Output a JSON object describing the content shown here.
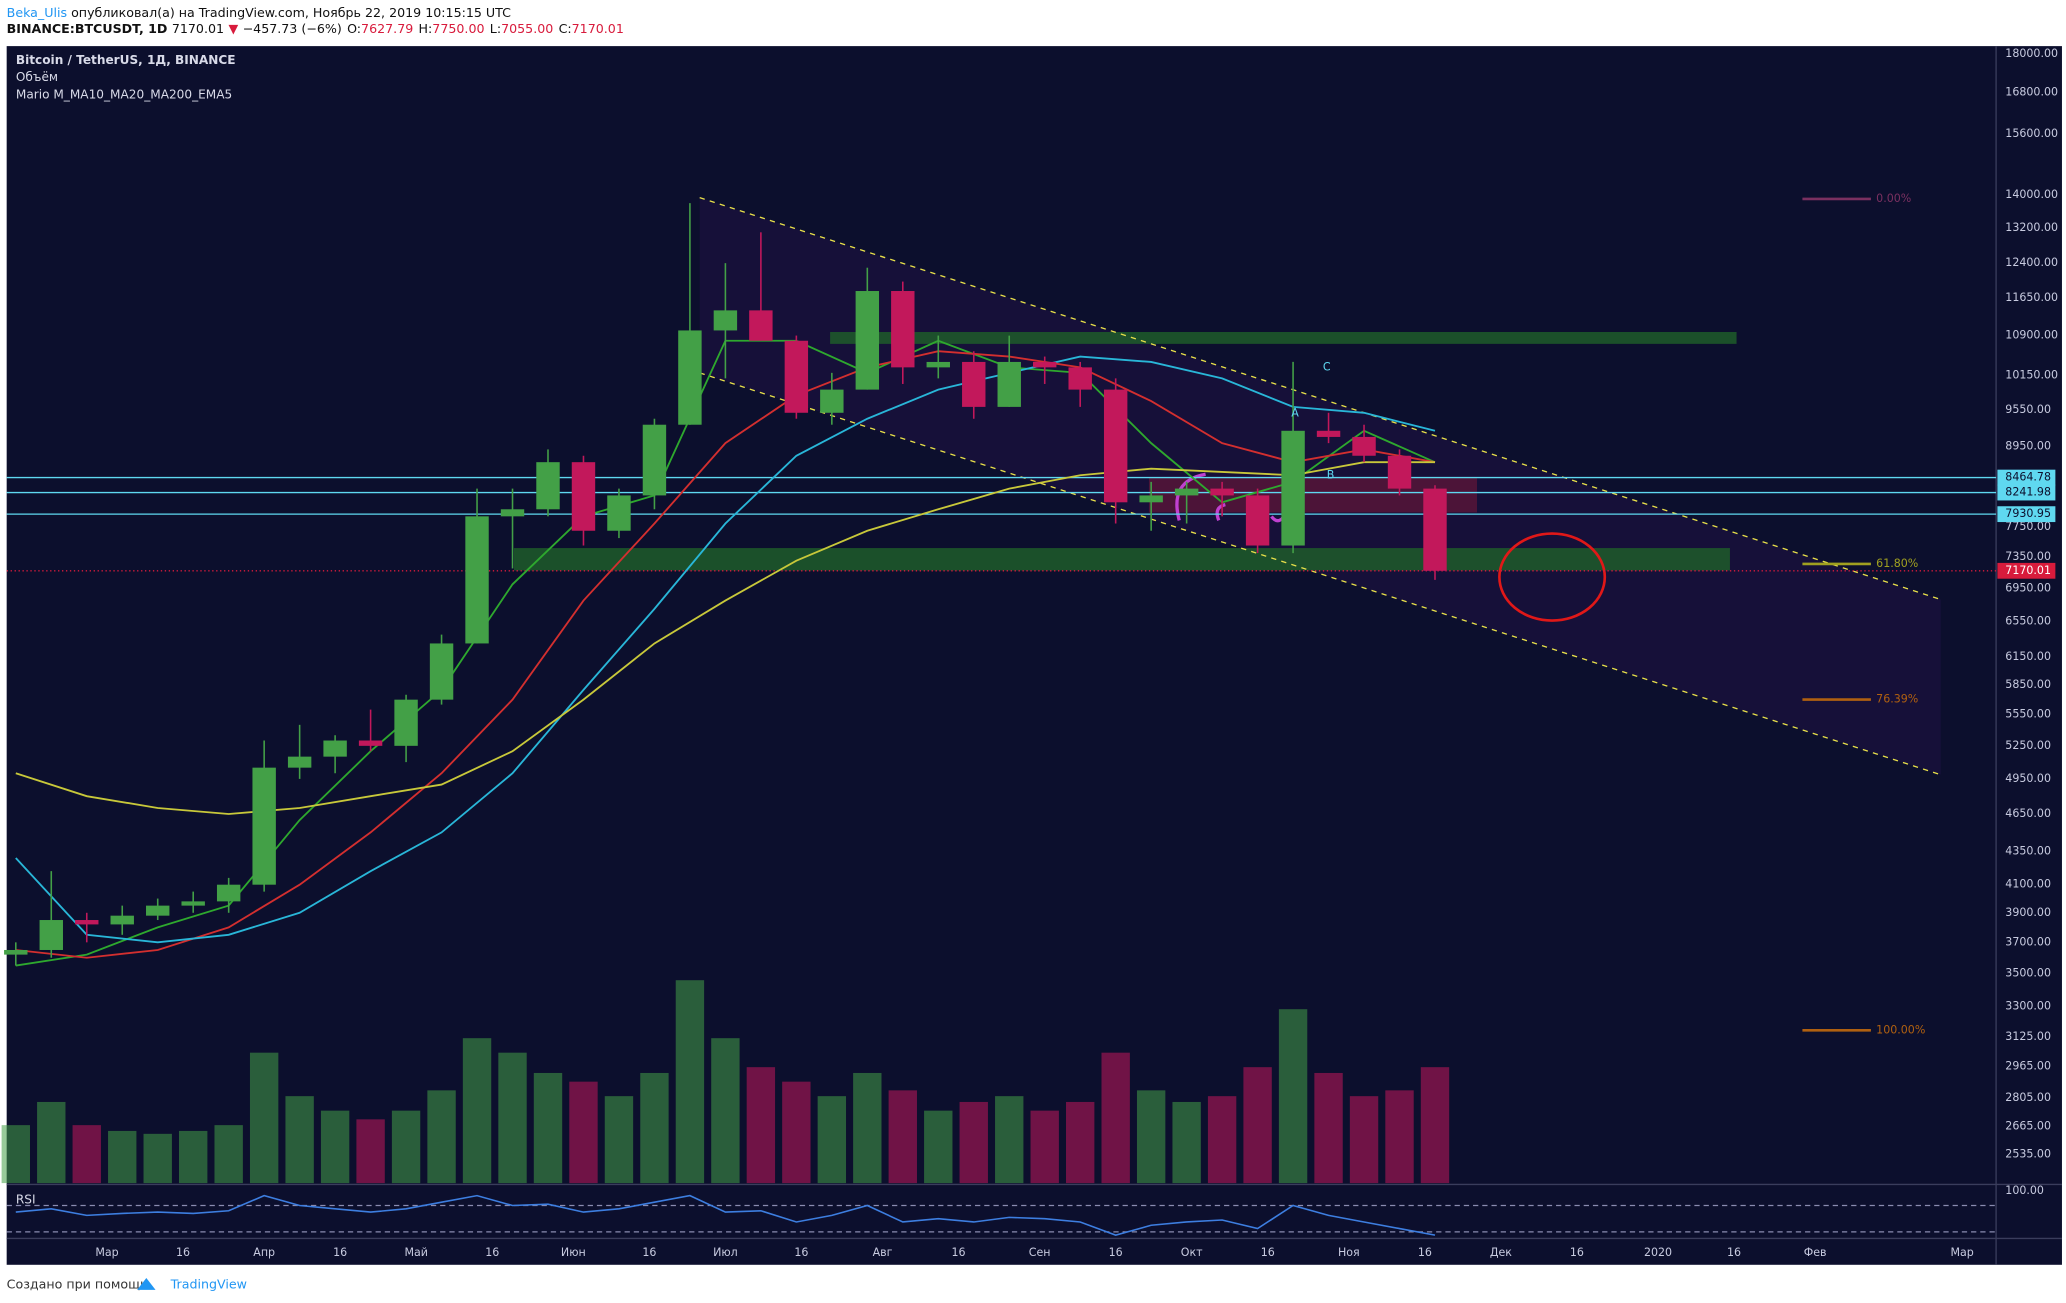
{
  "header": {
    "author": "Beka_Ulis",
    "published": "опубликовал(а) на TradingView.com, Ноябрь 22, 2019 10:15:15 UTC",
    "symbol": "BINANCE:BTCUSDT, 1D",
    "last": "7170.01",
    "arrow": "▼",
    "change": "−457.73 (−6%)",
    "ohlc": [
      {
        "key": "O:",
        "value": "7627.79"
      },
      {
        "key": "H:",
        "value": "7750.00"
      },
      {
        "key": "L:",
        "value": "7055.00"
      },
      {
        "key": "C:",
        "value": "7170.01"
      }
    ]
  },
  "legend": [
    "Bitcoin / TetherUS, 1Д, BINANCE",
    "Объём",
    "Mario M_MA10_MA20_MA200_EMA5"
  ],
  "annotations": {
    "a": "A",
    "b": "B",
    "c": "C",
    "fib": [
      "0.00%",
      "61.80%",
      "76.39%",
      "100.00%"
    ]
  },
  "footer": {
    "created": "Создано при помощи",
    "brand": "TradingView"
  },
  "chart_data": {
    "type": "candlestick",
    "log_scale": true,
    "xlim": [
      39.2,
      431.7
    ],
    "ylim": [
      2410,
      18250
    ],
    "xticks": [
      {
        "value": 59,
        "label": "Мар"
      },
      {
        "value": 74,
        "label": "16"
      },
      {
        "value": 90,
        "label": "Апр"
      },
      {
        "value": 105,
        "label": "16"
      },
      {
        "value": 120,
        "label": "Май"
      },
      {
        "value": 135,
        "label": "16"
      },
      {
        "value": 151,
        "label": "Июн"
      },
      {
        "value": 166,
        "label": "16"
      },
      {
        "value": 181,
        "label": "Июл"
      },
      {
        "value": 196,
        "label": "16"
      },
      {
        "value": 212,
        "label": "Авг"
      },
      {
        "value": 227,
        "label": "16"
      },
      {
        "value": 243,
        "label": "Сен"
      },
      {
        "value": 258,
        "label": "16"
      },
      {
        "value": 273,
        "label": "Окт"
      },
      {
        "value": 288,
        "label": "16"
      },
      {
        "value": 304,
        "label": "Ноя"
      },
      {
        "value": 319,
        "label": "16"
      },
      {
        "value": 334,
        "label": "Дек"
      },
      {
        "value": 349,
        "label": "16"
      },
      {
        "value": 365,
        "label": "2020"
      },
      {
        "value": 380,
        "label": "16"
      },
      {
        "value": 396,
        "label": "Фев"
      },
      {
        "value": 425,
        "label": "Мар"
      }
    ],
    "yticks": [
      {
        "value": 18000,
        "label": "18000.00"
      },
      {
        "value": 16800,
        "label": "16800.00"
      },
      {
        "value": 15600,
        "label": "15600.00"
      },
      {
        "value": 14000,
        "label": "14000.00"
      },
      {
        "value": 13200,
        "label": "13200.00"
      },
      {
        "value": 12400,
        "label": "12400.00"
      },
      {
        "value": 11650,
        "label": "11650.00"
      },
      {
        "value": 10900,
        "label": "10900.00"
      },
      {
        "value": 10150,
        "label": "10150.00"
      },
      {
        "value": 9550,
        "label": "9550.00"
      },
      {
        "value": 8950,
        "label": "8950.00"
      },
      {
        "value": 7750,
        "label": "7750.00"
      },
      {
        "value": 7350,
        "label": "7350.00"
      },
      {
        "value": 6950,
        "label": "6950.00"
      },
      {
        "value": 6550,
        "label": "6550.00"
      },
      {
        "value": 6150,
        "label": "6150.00"
      },
      {
        "value": 5850,
        "label": "5850.00"
      },
      {
        "value": 5550,
        "label": "5550.00"
      },
      {
        "value": 5250,
        "label": "5250.00"
      },
      {
        "value": 4950,
        "label": "4950.00"
      },
      {
        "value": 4650,
        "label": "4650.00"
      },
      {
        "value": 4350,
        "label": "4350.00"
      },
      {
        "value": 4100,
        "label": "4100.00"
      },
      {
        "value": 3900,
        "label": "3900.00"
      },
      {
        "value": 3700,
        "label": "3700.00"
      },
      {
        "value": 3500,
        "label": "3500.00"
      },
      {
        "value": 3300,
        "label": "3300.00"
      },
      {
        "value": 3125,
        "label": "3125.00"
      },
      {
        "value": 2965,
        "label": "2965.00"
      },
      {
        "value": 2805,
        "label": "2805.00"
      },
      {
        "value": 2665,
        "label": "2665.00"
      },
      {
        "value": 2535,
        "label": "2535.00"
      }
    ],
    "up_color": "#43a047",
    "down_color": "#c2185b",
    "candles": {
      "x": [
        41,
        48,
        55,
        62,
        69,
        76,
        83,
        90,
        97,
        104,
        111,
        118,
        125,
        132,
        139,
        146,
        153,
        160,
        167,
        174,
        181,
        188,
        195,
        202,
        209,
        216,
        223,
        230,
        237,
        244,
        251,
        258,
        265,
        272,
        279,
        286,
        293,
        300,
        307,
        314,
        321
      ],
      "open": [
        3620,
        3650,
        3850,
        3820,
        3880,
        3950,
        3980,
        4100,
        5050,
        5150,
        5300,
        5250,
        5700,
        6300,
        7900,
        8000,
        8700,
        7700,
        8200,
        9300,
        11000,
        11400,
        10800,
        9500,
        9900,
        11800,
        10300,
        10400,
        9600,
        10400,
        10300,
        9900,
        8100,
        8200,
        8300,
        8200,
        7500,
        9200,
        9100,
        8800,
        8300
      ],
      "high": [
        3700,
        4200,
        3900,
        3950,
        4000,
        4050,
        4150,
        5300,
        5450,
        5350,
        5600,
        5750,
        6400,
        8300,
        8300,
        8900,
        8800,
        8300,
        9400,
        13800,
        12400,
        13100,
        10900,
        10200,
        12300,
        12000,
        10900,
        10600,
        10900,
        10500,
        10400,
        10100,
        8400,
        8400,
        8400,
        8300,
        10400,
        9500,
        9300,
        8900,
        8350
      ],
      "low": [
        3550,
        3600,
        3700,
        3750,
        3850,
        3900,
        3900,
        4050,
        4950,
        5000,
        5200,
        5100,
        5650,
        6300,
        7200,
        7900,
        7500,
        7600,
        8000,
        9300,
        10100,
        10800,
        9400,
        9300,
        9900,
        10000,
        10100,
        9400,
        9600,
        10000,
        9600,
        7800,
        7700,
        7800,
        7900,
        7400,
        7400,
        9000,
        8700,
        8200,
        7055
      ],
      "close": [
        3650,
        3850,
        3820,
        3880,
        3950,
        3980,
        4100,
        5050,
        5150,
        5300,
        5250,
        5700,
        6300,
        7900,
        8000,
        8700,
        7700,
        8200,
        9300,
        11000,
        11400,
        10800,
        9500,
        9900,
        11800,
        10300,
        10400,
        9600,
        10400,
        10300,
        9900,
        8100,
        8200,
        8300,
        8200,
        7500,
        9200,
        9100,
        8800,
        8300,
        7170
      ]
    },
    "volume": {
      "vlim": [
        0,
        100
      ],
      "values": [
        20,
        28,
        20,
        18,
        17,
        18,
        20,
        45,
        30,
        25,
        22,
        25,
        32,
        50,
        45,
        38,
        35,
        30,
        38,
        70,
        50,
        40,
        35,
        30,
        38,
        32,
        25,
        28,
        30,
        25,
        28,
        45,
        32,
        28,
        30,
        40,
        60,
        38,
        30,
        32,
        40
      ]
    },
    "ma": [
      {
        "color": "#2ea82e",
        "x": [
          41,
          55,
          69,
          83,
          97,
          111,
          125,
          139,
          153,
          167,
          181,
          195,
          209,
          223,
          237,
          251,
          265,
          279,
          293,
          307,
          321
        ],
        "values": [
          3550,
          3620,
          3800,
          3950,
          4600,
          5200,
          5800,
          7000,
          7900,
          8200,
          10800,
          10800,
          10200,
          10800,
          10300,
          10200,
          9000,
          8100,
          8400,
          9200,
          8700
        ]
      },
      {
        "color": "#d32f2f",
        "x": [
          41,
          55,
          69,
          83,
          97,
          111,
          125,
          139,
          153,
          167,
          181,
          195,
          209,
          223,
          237,
          251,
          265,
          279,
          293,
          307,
          321
        ],
        "values": [
          3650,
          3600,
          3650,
          3800,
          4100,
          4500,
          5000,
          5700,
          6800,
          7800,
          9000,
          9800,
          10300,
          10600,
          10500,
          10300,
          9700,
          9000,
          8700,
          8900,
          8700
        ]
      },
      {
        "color": "#29b6d8",
        "x": [
          41,
          55,
          69,
          83,
          97,
          111,
          125,
          139,
          153,
          167,
          181,
          195,
          209,
          223,
          237,
          251,
          265,
          279,
          293,
          307,
          321
        ],
        "values": [
          4300,
          3750,
          3700,
          3750,
          3900,
          4200,
          4500,
          5000,
          5800,
          6700,
          7800,
          8800,
          9400,
          9900,
          10200,
          10500,
          10400,
          10100,
          9600,
          9500,
          9200
        ]
      },
      {
        "color": "#c8c83a",
        "x": [
          41,
          55,
          69,
          83,
          97,
          111,
          125,
          139,
          153,
          167,
          181,
          195,
          209,
          223,
          237,
          251,
          265,
          279,
          293,
          307,
          321
        ],
        "values": [
          5000,
          4800,
          4700,
          4650,
          4700,
          4800,
          4900,
          5200,
          5700,
          6300,
          6800,
          7300,
          7700,
          8000,
          8300,
          8500,
          8600,
          8550,
          8500,
          8700,
          8700
        ]
      }
    ],
    "levels": [
      8464.78,
      8241.98,
      7930.95
    ],
    "level_color": "#5fd8f0",
    "last_price": 7170.01,
    "last_color": "#d81b3c",
    "rsi": {
      "label": "RSI",
      "color": "#3d7ee0",
      "ylim": [
        20,
        100
      ],
      "ticks": [
        {
          "value": 100,
          "label": "100.00"
        }
      ],
      "bands": [
        70,
        30
      ],
      "values": [
        60,
        65,
        55,
        58,
        60,
        58,
        62,
        85,
        70,
        65,
        60,
        65,
        75,
        85,
        70,
        72,
        60,
        65,
        75,
        85,
        60,
        62,
        45,
        55,
        70,
        45,
        50,
        45,
        52,
        50,
        45,
        25,
        40,
        45,
        48,
        35,
        70,
        55,
        45,
        35,
        25
      ]
    }
  }
}
